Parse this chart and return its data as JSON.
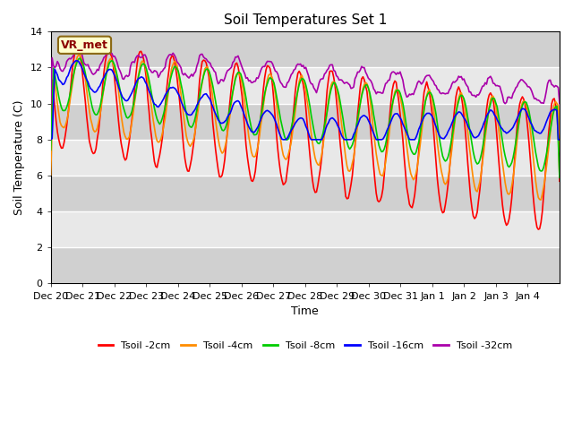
{
  "title": "Soil Temperatures Set 1",
  "xlabel": "Time",
  "ylabel": "Soil Temperature (C)",
  "ylim": [
    0,
    14
  ],
  "yticks": [
    0,
    2,
    4,
    6,
    8,
    10,
    12,
    14
  ],
  "xtick_labels": [
    "Dec 20",
    "Dec 21",
    "Dec 22",
    "Dec 23",
    "Dec 24",
    "Dec 25",
    "Dec 26",
    "Dec 27",
    "Dec 28",
    "Dec 29",
    "Dec 30",
    "Dec 31",
    "Jan 1",
    "Jan 2",
    "Jan 3",
    "Jan 4"
  ],
  "legend_labels": [
    "Tsoil -2cm",
    "Tsoil -4cm",
    "Tsoil -8cm",
    "Tsoil -16cm",
    "Tsoil -32cm"
  ],
  "colors": [
    "#ff0000",
    "#ff8c00",
    "#00cc00",
    "#0000ff",
    "#aa00aa"
  ],
  "annotation_text": "VR_met",
  "annotation_box_color": "#ffffcc",
  "annotation_box_edge": "#8b6914",
  "annotation_text_color": "#8b0000",
  "background_color": "#ffffff",
  "plot_bg_color": "#e8e8e8",
  "band_dark_color": "#d0d0d0",
  "grid_color": "#ffffff",
  "linewidth": 1.2,
  "figsize": [
    6.4,
    4.8
  ],
  "dpi": 100,
  "n_days": 16
}
